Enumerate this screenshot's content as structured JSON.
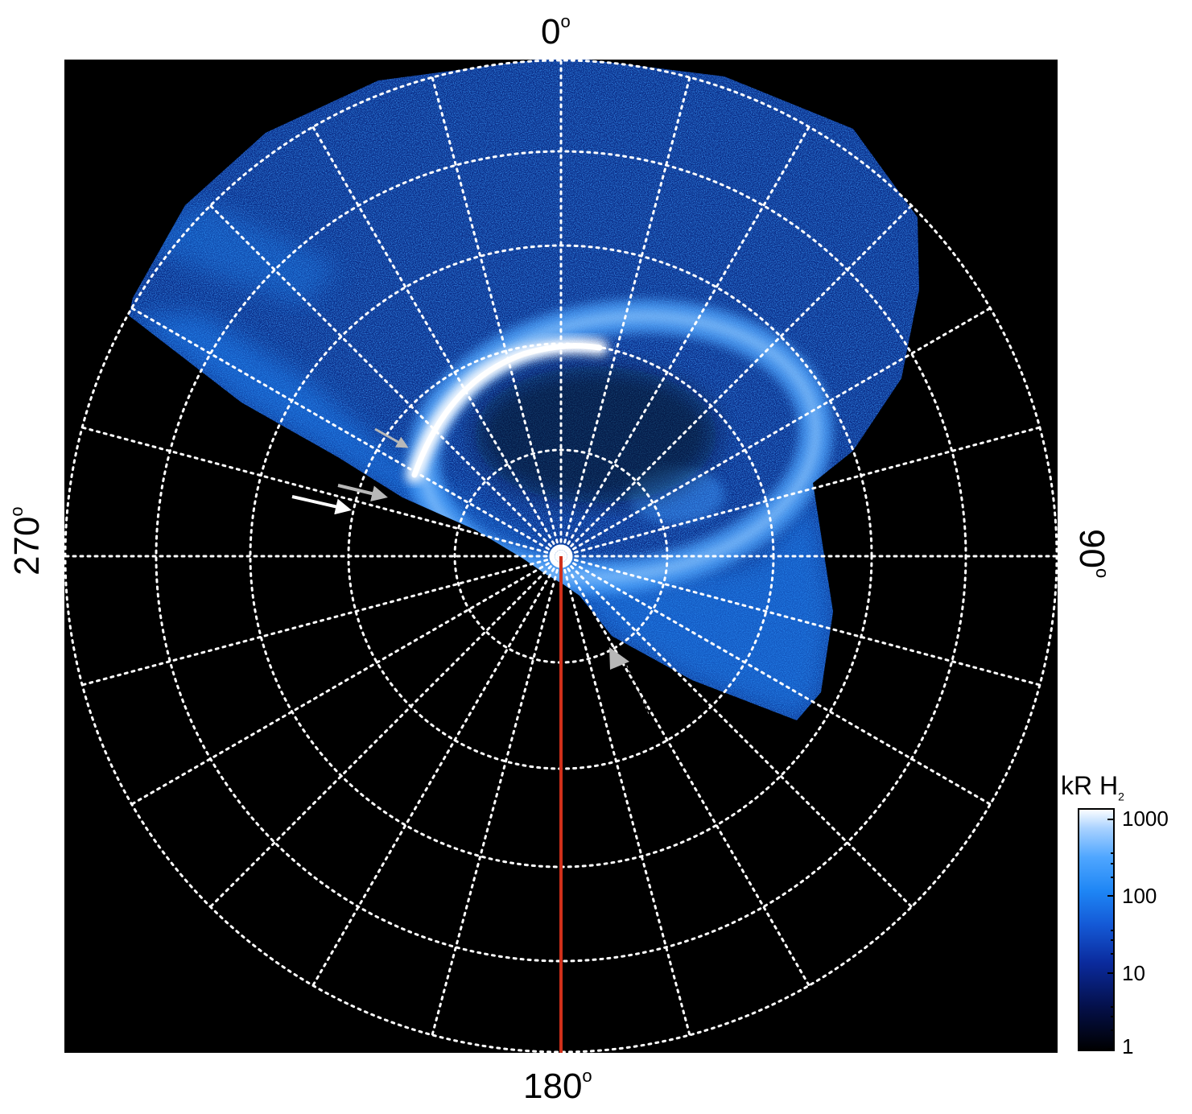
{
  "azimuth_labels": {
    "top": "0",
    "right": "90",
    "bottom": "180",
    "left": "270",
    "degree_symbol": "o"
  },
  "colorbar": {
    "title_main": "kR H",
    "title_sub": "2",
    "tick_labels": [
      "1000",
      "100",
      "10",
      "1"
    ],
    "scale": "log",
    "range": [
      1,
      1000
    ],
    "colors": [
      "#000000",
      "#04104a",
      "#0a2a9c",
      "#1459d6",
      "#1e86f5",
      "#4fa6ff",
      "#a9d2ff",
      "#ffffff"
    ]
  },
  "image": {
    "background": "#000000",
    "grid_color": "#ffffff",
    "meridian_color": "#d0301a",
    "arrow_white": "#ffffff",
    "arrow_grey": "#b8b8b8"
  }
}
